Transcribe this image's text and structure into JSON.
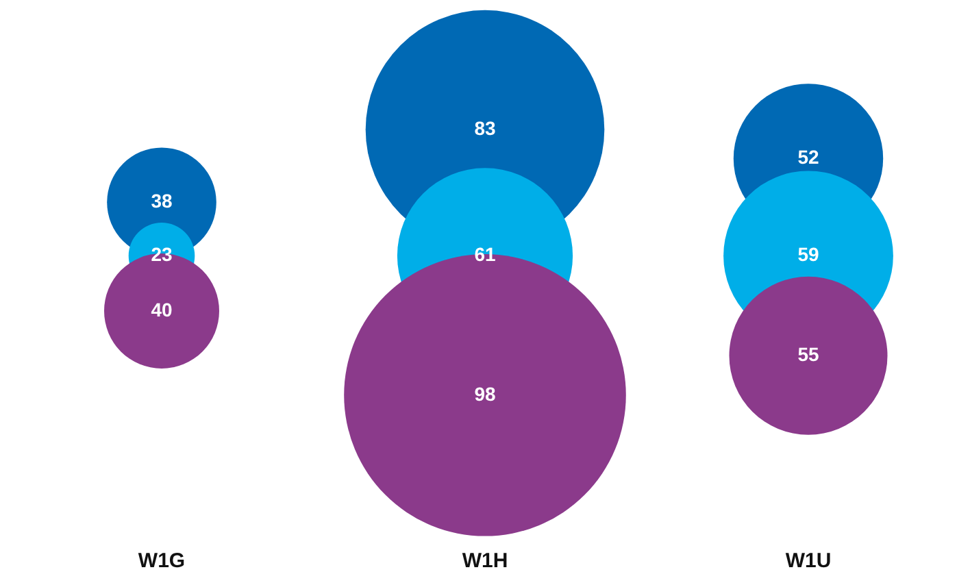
{
  "chart_data": {
    "type": "other",
    "data_labels": true,
    "categories": [
      "W1G",
      "W1H",
      "W1U"
    ],
    "series": [
      {
        "color": "#0069b4",
        "values": [
          38,
          83,
          52
        ]
      },
      {
        "color": "#00aee8",
        "values": [
          23,
          61,
          59
        ]
      },
      {
        "color": "#8b3a8b",
        "values": [
          40,
          98,
          55
        ]
      }
    ]
  }
}
